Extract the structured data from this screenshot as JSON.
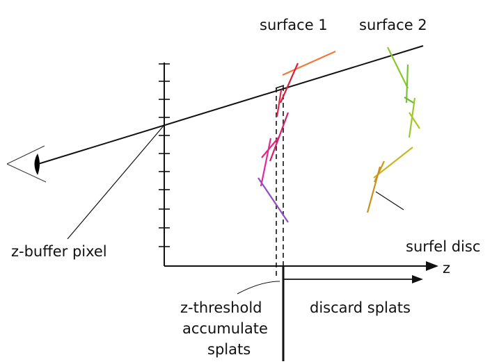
{
  "labels": {
    "surface_1": "surface 1",
    "surface_2": "surface 2",
    "z_buffer_pixel": "z-buffer pixel",
    "surfel_disc": "surfel disc",
    "z_axis": "z",
    "z_threshold": "z-threshold",
    "accumulate": "accumulate",
    "splats": "splats",
    "discard_splats": "discard splats"
  },
  "colors": {
    "line": "#111111",
    "surface_1": [
      "#f07a3c",
      "#e0204a",
      "#c8206c",
      "#e02a9a",
      "#9050c0"
    ],
    "surface_2": [
      "#8ac832",
      "#6cc030",
      "#b0c820",
      "#d09818",
      "#c8901c"
    ]
  }
}
